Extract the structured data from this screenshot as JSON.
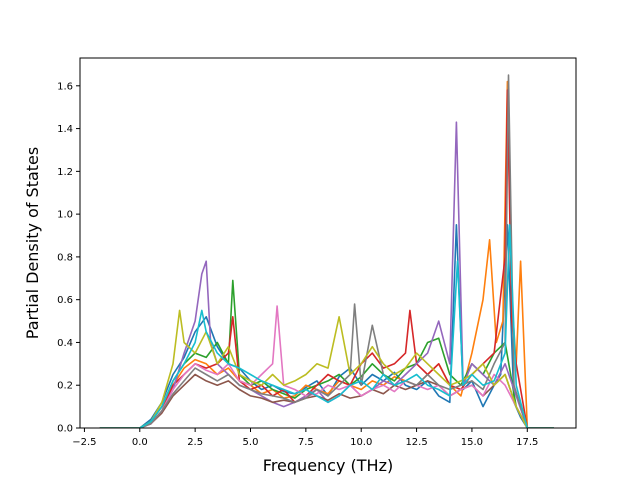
{
  "chart_data": {
    "type": "line",
    "title": "",
    "xlabel": "Frequency (THz)",
    "ylabel": "Partial Density of States",
    "xlim": [
      -2.7,
      19.7
    ],
    "ylim": [
      0.0,
      1.73
    ],
    "x_ticks": [
      -2.5,
      0.0,
      2.5,
      5.0,
      7.5,
      10.0,
      12.5,
      15.0,
      17.5
    ],
    "x_tick_labels": [
      "−2.5",
      "0.0",
      "2.5",
      "5.0",
      "7.5",
      "10.0",
      "12.5",
      "15.0",
      "17.5"
    ],
    "y_ticks": [
      0.0,
      0.2,
      0.4,
      0.6,
      0.8,
      1.0,
      1.2,
      1.4,
      1.6
    ],
    "y_tick_labels": [
      "0.0",
      "0.2",
      "0.4",
      "0.6",
      "0.8",
      "1.0",
      "1.2",
      "1.4",
      "1.6"
    ],
    "grid": false,
    "legend": "none",
    "series": [
      {
        "color": "#1f77b4",
        "x": [
          -1.8,
          0.0,
          0.5,
          1.0,
          1.5,
          2.0,
          2.5,
          3.0,
          3.5,
          4.0,
          4.5,
          5.0,
          5.5,
          6.0,
          6.5,
          7.0,
          7.5,
          8.0,
          8.5,
          9.0,
          9.5,
          10.0,
          10.5,
          11.0,
          11.5,
          12.0,
          12.5,
          13.0,
          13.5,
          14.0,
          14.3,
          14.6,
          15.0,
          15.5,
          16.0,
          16.3,
          16.6,
          16.9,
          17.2,
          17.5,
          18.0,
          18.7
        ],
        "y": [
          0.0,
          0.0,
          0.04,
          0.12,
          0.25,
          0.33,
          0.45,
          0.52,
          0.38,
          0.3,
          0.28,
          0.22,
          0.18,
          0.2,
          0.17,
          0.16,
          0.19,
          0.22,
          0.15,
          0.24,
          0.28,
          0.2,
          0.25,
          0.22,
          0.26,
          0.2,
          0.18,
          0.22,
          0.15,
          0.12,
          0.95,
          0.18,
          0.22,
          0.1,
          0.2,
          0.25,
          0.95,
          0.12,
          0.05,
          0.0,
          0.0,
          0.0
        ]
      },
      {
        "color": "#ff7f0e",
        "x": [
          -1.8,
          0.0,
          0.5,
          1.0,
          1.5,
          2.0,
          2.5,
          3.0,
          3.5,
          4.0,
          4.5,
          5.0,
          5.5,
          6.0,
          6.5,
          7.0,
          7.5,
          8.0,
          8.5,
          9.0,
          9.5,
          10.0,
          10.5,
          11.0,
          11.5,
          12.0,
          12.5,
          13.0,
          13.5,
          14.0,
          14.5,
          15.0,
          15.5,
          15.8,
          16.1,
          16.4,
          16.6,
          16.8,
          17.0,
          17.2,
          17.5,
          18.7
        ],
        "y": [
          0.0,
          0.0,
          0.03,
          0.1,
          0.2,
          0.28,
          0.32,
          0.3,
          0.25,
          0.28,
          0.22,
          0.2,
          0.16,
          0.18,
          0.14,
          0.15,
          0.2,
          0.18,
          0.16,
          0.22,
          0.2,
          0.18,
          0.22,
          0.2,
          0.24,
          0.22,
          0.2,
          0.25,
          0.3,
          0.2,
          0.15,
          0.35,
          0.6,
          0.88,
          0.4,
          0.5,
          1.62,
          0.6,
          0.3,
          0.78,
          0.0,
          0.0
        ]
      },
      {
        "color": "#2ca02c",
        "x": [
          -1.8,
          0.0,
          0.5,
          1.0,
          1.5,
          2.0,
          2.5,
          3.0,
          3.5,
          4.0,
          4.2,
          4.5,
          5.0,
          5.5,
          6.0,
          6.5,
          7.0,
          7.5,
          8.0,
          8.5,
          9.0,
          9.5,
          10.0,
          10.5,
          11.0,
          11.5,
          12.0,
          12.5,
          13.0,
          13.5,
          14.0,
          14.5,
          15.0,
          15.5,
          16.0,
          16.5,
          17.0,
          17.5,
          18.7
        ],
        "y": [
          0.0,
          0.0,
          0.03,
          0.1,
          0.22,
          0.3,
          0.35,
          0.33,
          0.4,
          0.3,
          0.69,
          0.25,
          0.2,
          0.22,
          0.18,
          0.16,
          0.14,
          0.18,
          0.2,
          0.22,
          0.25,
          0.2,
          0.24,
          0.3,
          0.25,
          0.22,
          0.28,
          0.3,
          0.4,
          0.42,
          0.25,
          0.2,
          0.3,
          0.25,
          0.35,
          0.4,
          0.1,
          0.0,
          0.0
        ]
      },
      {
        "color": "#d62728",
        "x": [
          -1.8,
          0.0,
          0.5,
          1.0,
          1.5,
          2.0,
          2.5,
          3.0,
          3.5,
          4.0,
          4.2,
          4.5,
          5.0,
          5.5,
          6.0,
          6.5,
          7.0,
          7.5,
          8.0,
          8.5,
          9.0,
          9.5,
          10.0,
          10.5,
          11.0,
          11.5,
          12.0,
          12.2,
          12.5,
          13.0,
          13.5,
          14.0,
          14.5,
          15.0,
          15.5,
          16.0,
          16.5,
          16.6,
          16.8,
          17.0,
          17.5,
          18.7
        ],
        "y": [
          0.0,
          0.0,
          0.02,
          0.08,
          0.2,
          0.25,
          0.3,
          0.28,
          0.3,
          0.35,
          0.52,
          0.22,
          0.18,
          0.2,
          0.15,
          0.18,
          0.12,
          0.15,
          0.2,
          0.25,
          0.22,
          0.2,
          0.3,
          0.35,
          0.28,
          0.3,
          0.35,
          0.55,
          0.3,
          0.25,
          0.3,
          0.2,
          0.18,
          0.25,
          0.3,
          0.35,
          0.8,
          1.58,
          0.5,
          0.3,
          0.0,
          0.0
        ]
      },
      {
        "color": "#9467bd",
        "x": [
          -1.8,
          0.0,
          0.5,
          1.0,
          1.5,
          2.0,
          2.5,
          2.8,
          3.0,
          3.2,
          3.5,
          4.0,
          4.5,
          5.0,
          5.5,
          6.0,
          6.5,
          7.0,
          7.5,
          8.0,
          8.5,
          9.0,
          9.5,
          10.0,
          10.5,
          11.0,
          11.5,
          12.0,
          12.5,
          13.0,
          13.5,
          14.0,
          14.3,
          14.6,
          15.0,
          15.5,
          16.0,
          16.5,
          17.0,
          17.5,
          18.7
        ],
        "y": [
          0.0,
          0.0,
          0.02,
          0.08,
          0.18,
          0.35,
          0.5,
          0.72,
          0.78,
          0.4,
          0.3,
          0.25,
          0.2,
          0.18,
          0.15,
          0.12,
          0.1,
          0.12,
          0.15,
          0.18,
          0.12,
          0.15,
          0.2,
          0.15,
          0.18,
          0.22,
          0.2,
          0.25,
          0.3,
          0.35,
          0.5,
          0.3,
          1.43,
          0.2,
          0.3,
          0.25,
          0.2,
          0.3,
          0.15,
          0.0,
          0.0
        ]
      },
      {
        "color": "#8c564b",
        "x": [
          -1.8,
          0.0,
          0.5,
          1.0,
          1.5,
          2.0,
          2.5,
          3.0,
          3.5,
          4.0,
          4.5,
          5.0,
          5.5,
          6.0,
          6.5,
          7.0,
          7.5,
          8.0,
          8.5,
          9.0,
          9.5,
          10.0,
          10.5,
          11.0,
          11.5,
          12.0,
          12.5,
          13.0,
          13.5,
          14.0,
          14.5,
          15.0,
          15.5,
          16.0,
          16.5,
          17.0,
          17.5,
          18.7
        ],
        "y": [
          0.0,
          0.0,
          0.02,
          0.07,
          0.15,
          0.2,
          0.25,
          0.22,
          0.2,
          0.22,
          0.18,
          0.15,
          0.14,
          0.12,
          0.13,
          0.12,
          0.14,
          0.15,
          0.13,
          0.16,
          0.14,
          0.15,
          0.18,
          0.16,
          0.2,
          0.18,
          0.2,
          0.22,
          0.2,
          0.15,
          0.18,
          0.2,
          0.15,
          0.2,
          0.25,
          0.1,
          0.0,
          0.0
        ]
      },
      {
        "color": "#e377c2",
        "x": [
          -1.8,
          0.0,
          0.5,
          1.0,
          1.5,
          2.0,
          2.5,
          3.0,
          3.5,
          4.0,
          4.5,
          5.0,
          5.5,
          6.0,
          6.2,
          6.5,
          7.0,
          7.5,
          8.0,
          8.5,
          9.0,
          9.5,
          10.0,
          10.5,
          11.0,
          11.5,
          12.0,
          12.5,
          13.0,
          13.5,
          14.0,
          14.5,
          15.0,
          15.5,
          16.0,
          16.5,
          17.0,
          17.5,
          18.7
        ],
        "y": [
          0.0,
          0.0,
          0.02,
          0.08,
          0.18,
          0.25,
          0.3,
          0.27,
          0.25,
          0.3,
          0.22,
          0.2,
          0.25,
          0.3,
          0.57,
          0.2,
          0.18,
          0.15,
          0.16,
          0.2,
          0.18,
          0.2,
          0.15,
          0.18,
          0.2,
          0.17,
          0.22,
          0.2,
          0.18,
          0.2,
          0.15,
          0.18,
          0.2,
          0.15,
          0.25,
          0.2,
          0.1,
          0.0,
          0.0
        ]
      },
      {
        "color": "#7f7f7f",
        "x": [
          -1.8,
          0.0,
          0.5,
          1.0,
          1.5,
          2.0,
          2.5,
          3.0,
          3.5,
          4.0,
          4.5,
          5.0,
          5.5,
          6.0,
          6.5,
          7.0,
          7.5,
          8.0,
          8.5,
          9.0,
          9.5,
          9.7,
          10.0,
          10.5,
          11.0,
          11.5,
          12.0,
          12.5,
          13.0,
          13.5,
          14.0,
          14.5,
          15.0,
          15.5,
          16.0,
          16.5,
          16.65,
          16.9,
          17.2,
          17.5,
          18.7
        ],
        "y": [
          0.0,
          0.0,
          0.02,
          0.08,
          0.16,
          0.22,
          0.28,
          0.25,
          0.22,
          0.25,
          0.2,
          0.18,
          0.16,
          0.15,
          0.14,
          0.12,
          0.14,
          0.18,
          0.15,
          0.2,
          0.25,
          0.58,
          0.2,
          0.48,
          0.25,
          0.2,
          0.22,
          0.2,
          0.25,
          0.2,
          0.18,
          0.2,
          0.22,
          0.18,
          0.3,
          0.4,
          1.65,
          0.2,
          0.1,
          0.0,
          0.0
        ]
      },
      {
        "color": "#bcbd22",
        "x": [
          -1.8,
          0.0,
          0.5,
          1.0,
          1.5,
          1.8,
          2.0,
          2.5,
          3.0,
          3.5,
          4.0,
          4.5,
          5.0,
          5.5,
          6.0,
          6.5,
          7.0,
          7.5,
          8.0,
          8.5,
          9.0,
          9.5,
          10.0,
          10.5,
          11.0,
          11.5,
          12.0,
          12.5,
          13.0,
          13.5,
          14.0,
          14.5,
          15.0,
          15.5,
          16.0,
          16.5,
          17.0,
          17.5,
          18.7
        ],
        "y": [
          0.0,
          0.0,
          0.03,
          0.12,
          0.3,
          0.55,
          0.4,
          0.35,
          0.45,
          0.3,
          0.38,
          0.25,
          0.22,
          0.2,
          0.25,
          0.2,
          0.22,
          0.25,
          0.3,
          0.28,
          0.52,
          0.25,
          0.3,
          0.38,
          0.3,
          0.25,
          0.28,
          0.35,
          0.3,
          0.25,
          0.2,
          0.22,
          0.25,
          0.3,
          0.2,
          0.25,
          0.1,
          0.0,
          0.0
        ]
      },
      {
        "color": "#17becf",
        "x": [
          -1.8,
          0.0,
          0.5,
          1.0,
          1.5,
          2.0,
          2.5,
          2.8,
          3.0,
          3.5,
          4.0,
          4.5,
          5.0,
          5.5,
          6.0,
          6.5,
          7.0,
          7.5,
          8.0,
          8.5,
          9.0,
          9.5,
          10.0,
          10.5,
          11.0,
          11.5,
          12.0,
          12.5,
          13.0,
          13.5,
          14.0,
          14.35,
          14.6,
          15.0,
          15.5,
          16.0,
          16.5,
          16.7,
          17.0,
          17.5,
          18.7
        ],
        "y": [
          0.0,
          0.0,
          0.03,
          0.1,
          0.22,
          0.3,
          0.4,
          0.55,
          0.45,
          0.35,
          0.3,
          0.28,
          0.25,
          0.22,
          0.2,
          0.18,
          0.16,
          0.18,
          0.15,
          0.12,
          0.15,
          0.2,
          0.22,
          0.18,
          0.25,
          0.2,
          0.22,
          0.25,
          0.2,
          0.18,
          0.15,
          0.78,
          0.2,
          0.25,
          0.2,
          0.22,
          0.35,
          0.95,
          0.2,
          0.0,
          0.0
        ]
      }
    ]
  }
}
